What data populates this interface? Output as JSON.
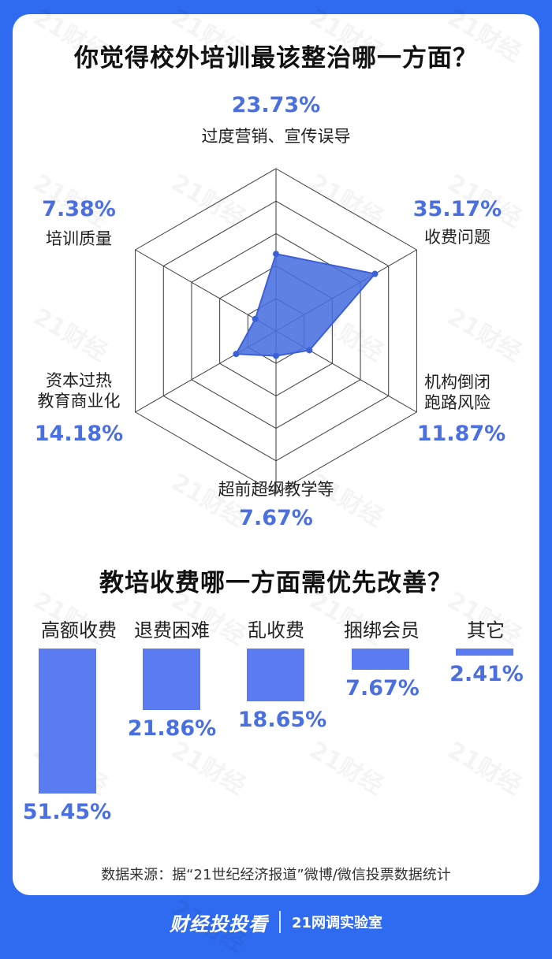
{
  "titles": {
    "radar": "你觉得校外培训最该整治哪一方面？",
    "bars": "教培收费哪一方面需优先改善？"
  },
  "chart_data": [
    {
      "type": "radar",
      "title": "你觉得校外培训最该整治哪一方面？",
      "axes": [
        {
          "label": "过度营销、宣传误导",
          "value": 23.73,
          "display": "23.73%"
        },
        {
          "label": "收费问题",
          "value": 35.17,
          "display": "35.17%"
        },
        {
          "label": "机构倒闭跑路风险",
          "line1": "机构倒闭",
          "line2": "跑路风险",
          "value": 11.87,
          "display": "11.87%"
        },
        {
          "label": "超前超纲教学等",
          "value": 7.67,
          "display": "7.67%"
        },
        {
          "label": "资本过热教育商业化",
          "line1": "资本过热",
          "line2": "教育商业化",
          "value": 14.18,
          "display": "14.18%"
        },
        {
          "label": "培训质量",
          "value": 7.38,
          "display": "7.38%"
        }
      ],
      "rlim": [
        0,
        50
      ],
      "rings": 5,
      "color": "#4a6fe0"
    },
    {
      "type": "bar",
      "title": "教培收费哪一方面需优先改善？",
      "categories": [
        "高额收费",
        "退费困难",
        "乱收费",
        "捆绑会员",
        "其它"
      ],
      "values": [
        51.45,
        21.86,
        18.65,
        7.67,
        2.41
      ],
      "labels": [
        "51.45%",
        "21.86%",
        "18.65%",
        "7.67%",
        "2.41%"
      ],
      "color": "#5b7cf0"
    }
  ],
  "source": "数据来源：据“21世纪经济报道”微博/微信投票数据统计",
  "footer": {
    "logo": "财经投投看",
    "org": "21网调实验室"
  },
  "watermark": "21财经"
}
